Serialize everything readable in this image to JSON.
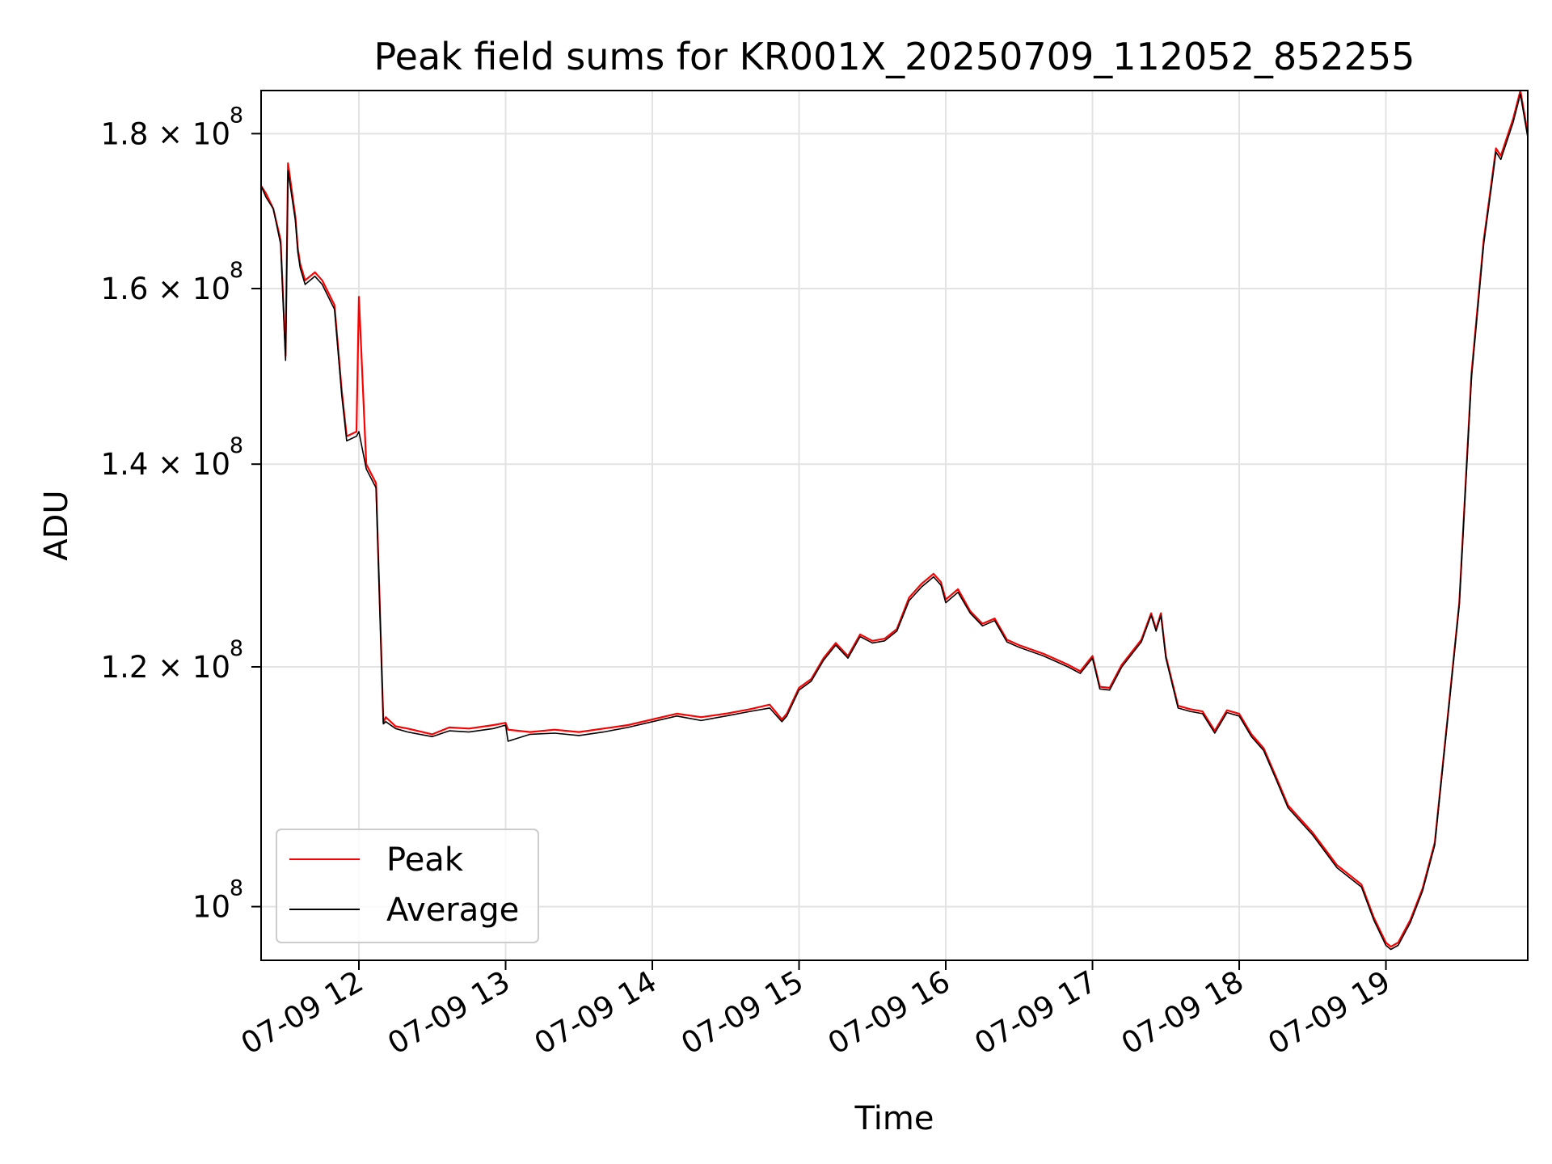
{
  "chart_data": {
    "type": "line",
    "title": "Peak field sums for KR001X_20250709_112052_852255",
    "xlabel": "Time",
    "ylabel": "ADU",
    "xlim": [
      "2025-07-09 11:20",
      "2025-07-09 19:58"
    ],
    "ylim": [
      96000000,
      186000000
    ],
    "yscale": "log",
    "grid": true,
    "legend_position": "lower-left",
    "x_ticks": [
      "07-09 12",
      "07-09 13",
      "07-09 14",
      "07-09 15",
      "07-09 16",
      "07-09 17",
      "07-09 18",
      "07-09 19"
    ],
    "y_ticks": [
      {
        "value": 100000000,
        "label": "10",
        "exp": "8"
      },
      {
        "value": 120000000,
        "label": "1.2 × 10",
        "exp": "8"
      },
      {
        "value": 140000000,
        "label": "1.4 × 10",
        "exp": "8"
      },
      {
        "value": 160000000,
        "label": "1.6 × 10",
        "exp": "8"
      },
      {
        "value": 180000000,
        "label": "1.8 × 10",
        "exp": "8"
      }
    ],
    "x": [
      "11:20",
      "11:22",
      "11:25",
      "11:28",
      "11:30",
      "11:31",
      "11:34",
      "11:35",
      "11:36",
      "11:38",
      "11:42",
      "11:45",
      "11:50",
      "11:53",
      "11:55",
      "11:59",
      "12:00",
      "12:03",
      "12:07",
      "12:10",
      "12:11",
      "12:15",
      "12:20",
      "12:30",
      "12:37",
      "12:45",
      "12:55",
      "13:00",
      "13:01",
      "13:10",
      "13:20",
      "13:30",
      "13:40",
      "13:50",
      "14:00",
      "14:10",
      "14:20",
      "14:30",
      "14:40",
      "14:48",
      "14:53",
      "14:55",
      "15:00",
      "15:05",
      "15:10",
      "15:15",
      "15:20",
      "15:25",
      "15:30",
      "15:35",
      "15:40",
      "15:45",
      "15:50",
      "15:55",
      "15:58",
      "16:00",
      "16:05",
      "16:10",
      "16:15",
      "16:20",
      "16:25",
      "16:30",
      "16:40",
      "16:50",
      "16:55",
      "17:00",
      "17:03",
      "17:07",
      "17:12",
      "17:20",
      "17:24",
      "17:26",
      "17:28",
      "17:30",
      "17:35",
      "17:40",
      "17:45",
      "17:50",
      "17:55",
      "18:00",
      "18:05",
      "18:10",
      "18:15",
      "18:20",
      "18:30",
      "18:40",
      "18:50",
      "18:55",
      "19:00",
      "19:02",
      "19:05",
      "19:10",
      "19:15",
      "19:20",
      "19:25",
      "19:30",
      "19:35",
      "19:40",
      "19:43",
      "19:45",
      "19:47",
      "19:50",
      "19:52",
      "19:55",
      "19:58"
    ],
    "series": [
      {
        "name": "Peak",
        "color": "#ff0000",
        "values": [
          173,
          172,
          170,
          166,
          152,
          176,
          169,
          165,
          163,
          161,
          162,
          161,
          158,
          148,
          143,
          143.5,
          159,
          140,
          138,
          115,
          115.5,
          114.7,
          114.5,
          114.0,
          114.6,
          114.5,
          114.8,
          115.0,
          114.4,
          114.2,
          114.4,
          114.2,
          114.5,
          114.8,
          115.3,
          115.8,
          115.5,
          115.8,
          116.2,
          116.6,
          115.3,
          115.8,
          118.1,
          118.9,
          120.8,
          122.2,
          121.0,
          123.0,
          122.4,
          122.6,
          123.5,
          126.5,
          127.8,
          128.8,
          128.0,
          126.3,
          127.3,
          125.2,
          124.0,
          124.5,
          122.5,
          122.0,
          121.2,
          120.2,
          119.6,
          121.0,
          118.2,
          118.1,
          120.2,
          122.5,
          125.0,
          123.5,
          125.0,
          121.0,
          116.5,
          116.2,
          116.0,
          114.3,
          116.1,
          115.8,
          114.0,
          112.8,
          110.4,
          108.0,
          105.8,
          103.2,
          101.7,
          99.2,
          97.3,
          97.0,
          97.3,
          99.0,
          101.4,
          105.0,
          115.0,
          126.0,
          150.0,
          166.0,
          173.0,
          178.0,
          177.0,
          180.0,
          182.0,
          186.0,
          180.0
        ]
      },
      {
        "name": "Average",
        "color": "#000000",
        "values": [
          173,
          171.5,
          170,
          165.5,
          151.5,
          175,
          168.5,
          164.5,
          162.5,
          160.5,
          161.5,
          160.5,
          157.5,
          147.5,
          142.5,
          143,
          143.5,
          139.5,
          137.5,
          114.9,
          115.1,
          114.5,
          114.2,
          113.8,
          114.3,
          114.2,
          114.5,
          114.8,
          113.4,
          114.0,
          114.1,
          113.9,
          114.2,
          114.6,
          115.1,
          115.6,
          115.2,
          115.6,
          116.0,
          116.3,
          115.1,
          115.6,
          117.9,
          118.7,
          120.6,
          122.0,
          120.8,
          122.8,
          122.2,
          122.4,
          123.3,
          126.2,
          127.5,
          128.5,
          127.7,
          126.0,
          127.0,
          125.0,
          123.8,
          124.3,
          122.3,
          121.8,
          121.0,
          120.0,
          119.4,
          120.8,
          118.0,
          117.9,
          120.0,
          122.3,
          124.8,
          123.3,
          124.8,
          120.8,
          116.3,
          116.0,
          115.8,
          114.1,
          115.9,
          115.6,
          113.8,
          112.6,
          110.2,
          107.8,
          105.6,
          103.0,
          101.5,
          99.0,
          97.1,
          96.8,
          97.1,
          98.8,
          101.2,
          104.8,
          114.8,
          125.8,
          149.5,
          165.5,
          172.5,
          177.5,
          176.5,
          179.5,
          181.5,
          185.5,
          179.5
        ]
      }
    ]
  }
}
